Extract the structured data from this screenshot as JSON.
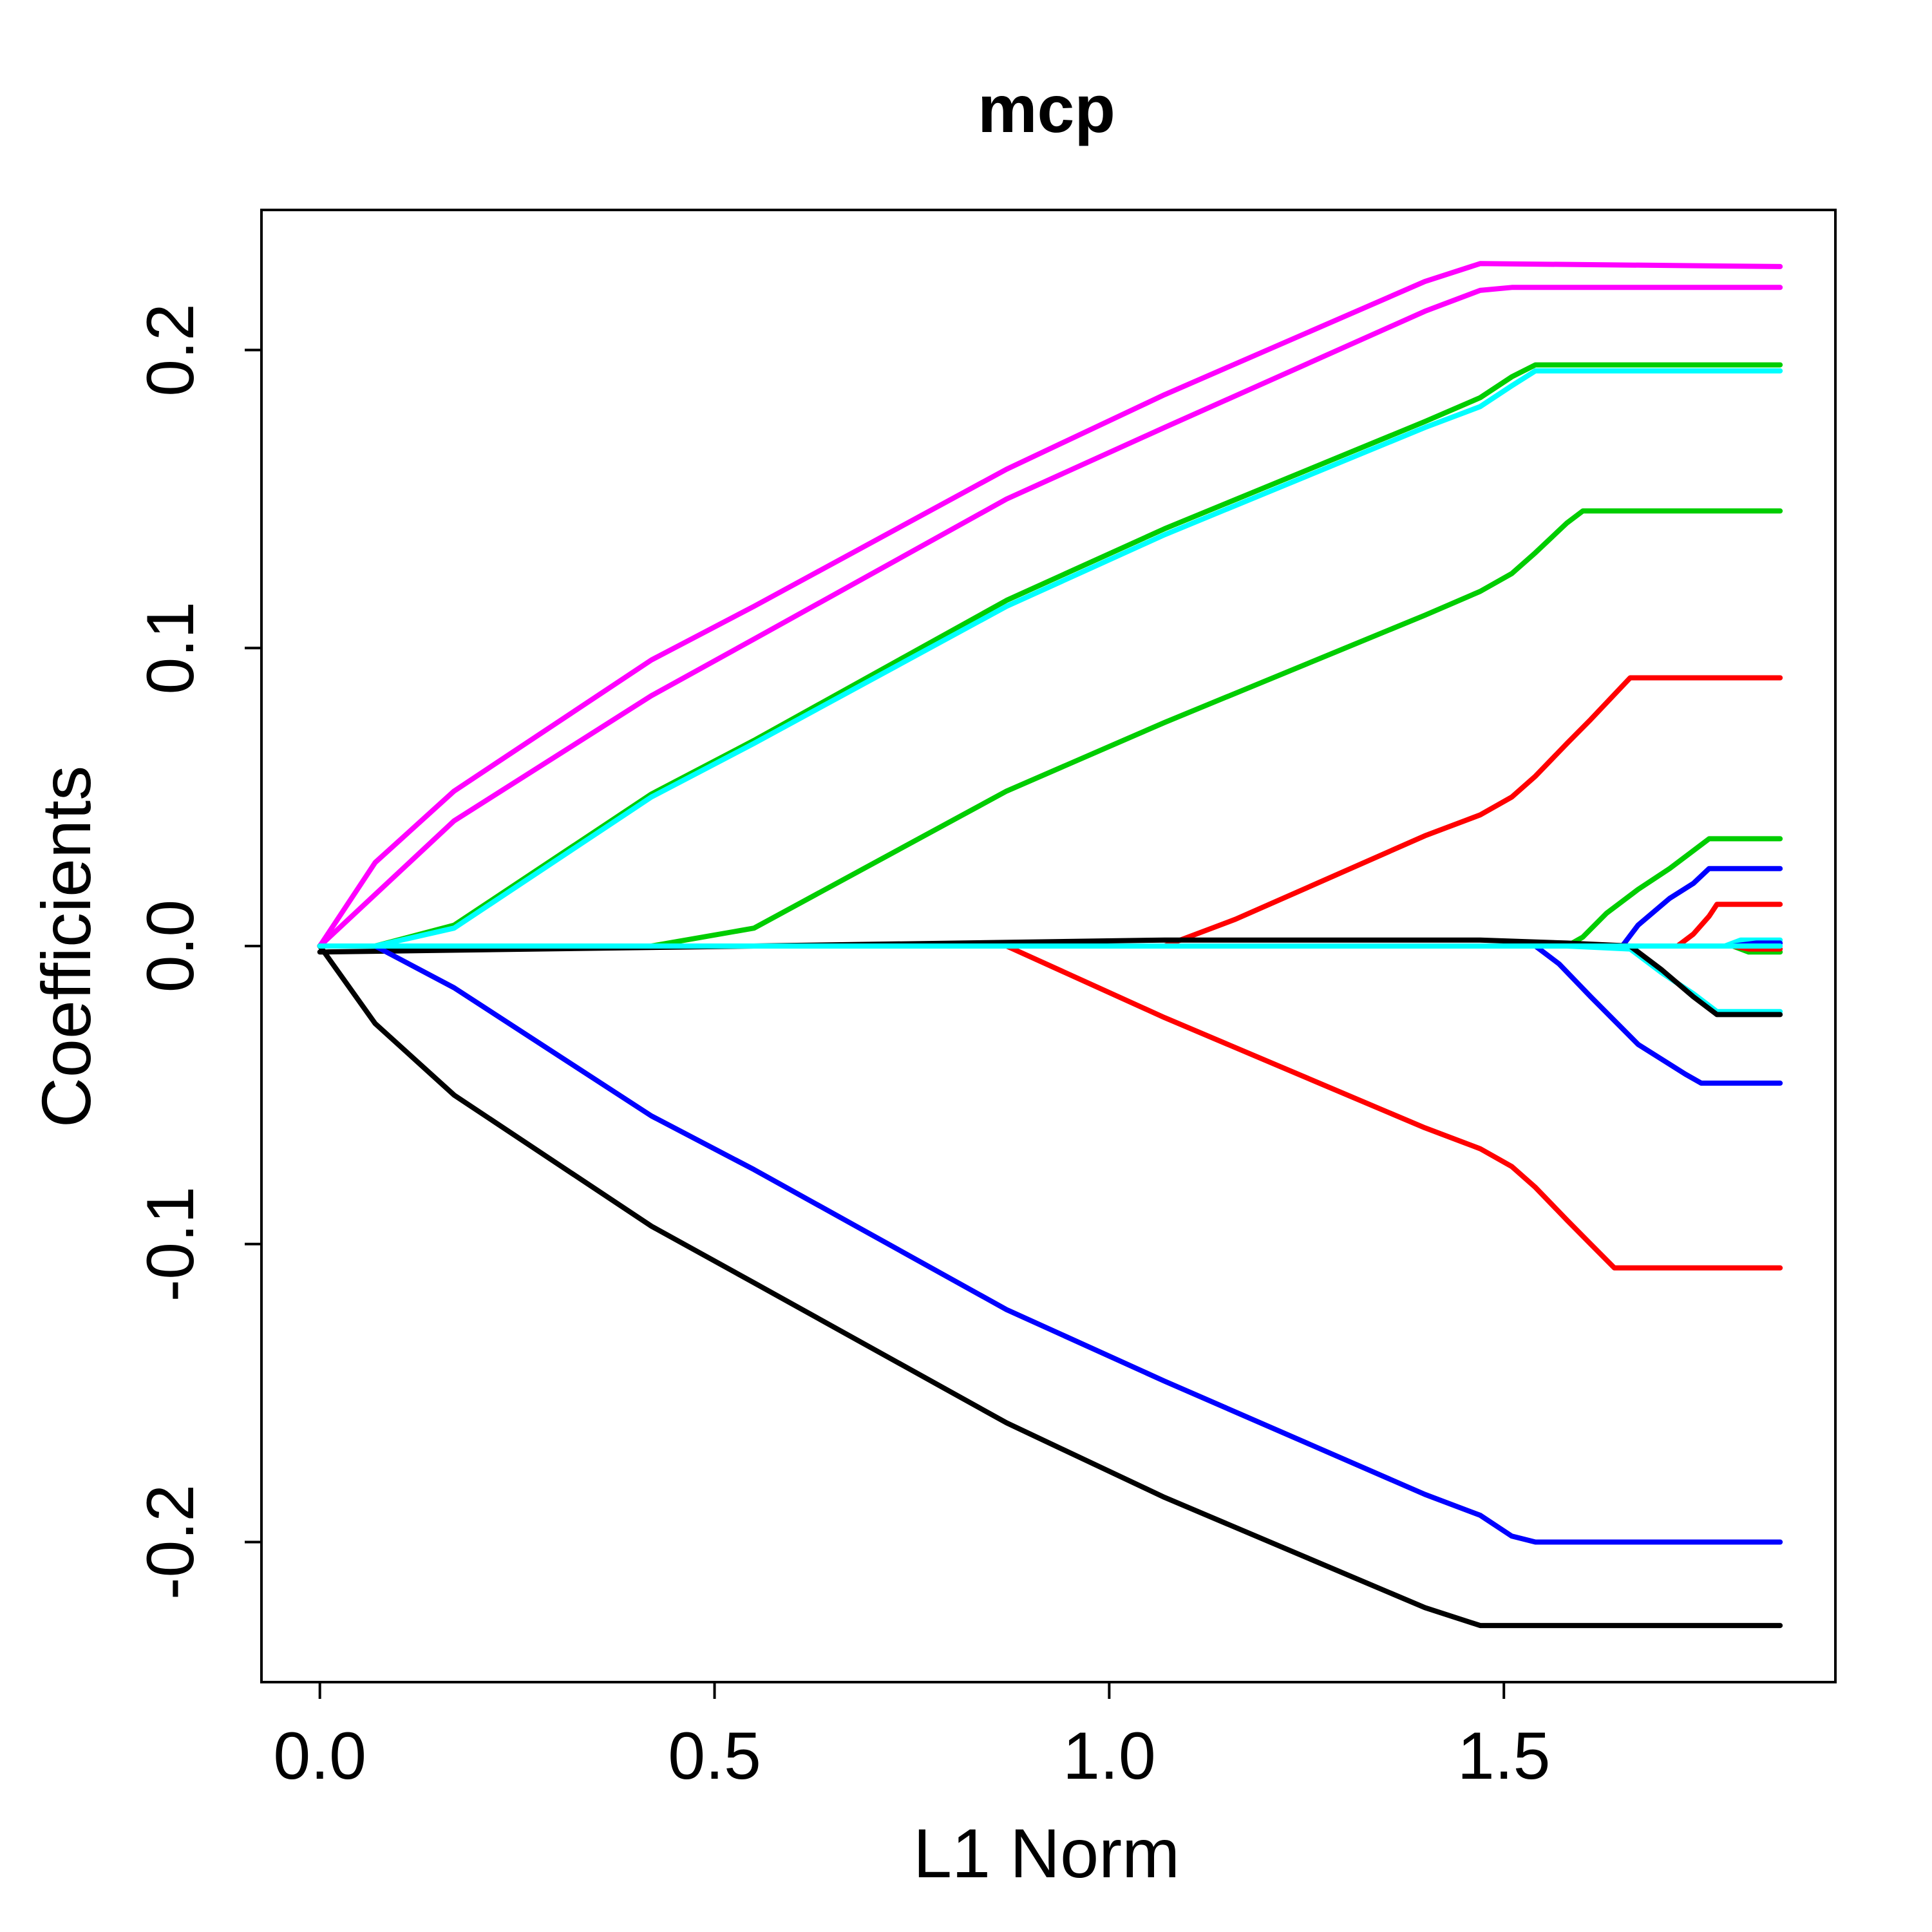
{
  "chart_data": {
    "type": "line",
    "title": "mcp",
    "xlabel": "L1 Norm",
    "ylabel": "Coefficients",
    "xlim": [
      -0.074,
      1.92
    ],
    "ylim": [
      -0.247,
      0.247
    ],
    "xticks": [
      {
        "value": 0.0,
        "label": "0.0"
      },
      {
        "value": 0.5,
        "label": "0.5"
      },
      {
        "value": 1.0,
        "label": "1.0"
      },
      {
        "value": 1.5,
        "label": "1.5"
      }
    ],
    "yticks": [
      {
        "value": -0.2,
        "label": "-0.2"
      },
      {
        "value": -0.1,
        "label": "-0.1"
      },
      {
        "value": 0.0,
        "label": "0.0"
      },
      {
        "value": 0.1,
        "label": "0.1"
      },
      {
        "value": 0.2,
        "label": "0.2"
      }
    ],
    "grid": false,
    "legend": false,
    "series": [
      {
        "color": "#FF00FF",
        "points": [
          [
            0.0,
            0.0
          ],
          [
            0.07,
            0.028
          ],
          [
            0.17,
            0.052
          ],
          [
            0.42,
            0.096
          ],
          [
            0.55,
            0.114
          ],
          [
            0.87,
            0.16
          ],
          [
            1.07,
            0.185
          ],
          [
            1.4,
            0.223
          ],
          [
            1.47,
            0.229
          ],
          [
            1.85,
            0.228
          ]
        ]
      },
      {
        "color": "#FF00FF",
        "points": [
          [
            0.0,
            0.0
          ],
          [
            0.17,
            0.042
          ],
          [
            0.42,
            0.084
          ],
          [
            0.55,
            0.103
          ],
          [
            0.87,
            0.15
          ],
          [
            1.07,
            0.174
          ],
          [
            1.4,
            0.213
          ],
          [
            1.47,
            0.22
          ],
          [
            1.51,
            0.221
          ],
          [
            1.85,
            0.221
          ]
        ]
      },
      {
        "color": "#00CD00",
        "points": [
          [
            0.0,
            0.0
          ],
          [
            0.07,
            0.0
          ],
          [
            0.17,
            0.007
          ],
          [
            0.42,
            0.051
          ],
          [
            0.55,
            0.069
          ],
          [
            0.87,
            0.116
          ],
          [
            1.07,
            0.14
          ],
          [
            1.4,
            0.176
          ],
          [
            1.47,
            0.184
          ],
          [
            1.51,
            0.191
          ],
          [
            1.54,
            0.195
          ],
          [
            1.85,
            0.195
          ]
        ]
      },
      {
        "color": "#00FFFF",
        "points": [
          [
            0.0,
            0.0
          ],
          [
            0.07,
            0.0
          ],
          [
            0.17,
            0.006
          ],
          [
            0.42,
            0.05
          ],
          [
            0.55,
            0.068
          ],
          [
            0.87,
            0.114
          ],
          [
            1.07,
            0.138
          ],
          [
            1.4,
            0.174
          ],
          [
            1.47,
            0.181
          ],
          [
            1.51,
            0.188
          ],
          [
            1.54,
            0.193
          ],
          [
            1.85,
            0.193
          ]
        ]
      },
      {
        "color": "#00CD00",
        "points": [
          [
            0.0,
            0.0
          ],
          [
            0.42,
            0.0
          ],
          [
            0.55,
            0.006
          ],
          [
            0.87,
            0.052
          ],
          [
            1.07,
            0.075
          ],
          [
            1.4,
            0.111
          ],
          [
            1.47,
            0.119
          ],
          [
            1.51,
            0.125
          ],
          [
            1.54,
            0.132
          ],
          [
            1.58,
            0.142
          ],
          [
            1.6,
            0.146
          ],
          [
            1.85,
            0.146
          ]
        ]
      },
      {
        "color": "#FF0000",
        "points": [
          [
            0.0,
            0.0
          ],
          [
            1.07,
            0.0
          ],
          [
            1.16,
            0.009
          ],
          [
            1.4,
            0.037
          ],
          [
            1.47,
            0.044
          ],
          [
            1.51,
            0.05
          ],
          [
            1.54,
            0.057
          ],
          [
            1.58,
            0.068
          ],
          [
            1.61,
            0.076
          ],
          [
            1.66,
            0.09
          ],
          [
            1.85,
            0.09
          ]
        ]
      },
      {
        "color": "#00CD00",
        "points": [
          [
            0.0,
            0.0
          ],
          [
            1.58,
            0.0
          ],
          [
            1.6,
            0.003
          ],
          [
            1.63,
            0.011
          ],
          [
            1.67,
            0.019
          ],
          [
            1.71,
            0.026
          ],
          [
            1.74,
            0.032
          ],
          [
            1.76,
            0.036
          ],
          [
            1.85,
            0.036
          ]
        ]
      },
      {
        "color": "#0000FF",
        "points": [
          [
            0.0,
            0.0
          ],
          [
            1.65,
            0.0
          ],
          [
            1.67,
            0.007
          ],
          [
            1.71,
            0.016
          ],
          [
            1.74,
            0.021
          ],
          [
            1.76,
            0.026
          ],
          [
            1.85,
            0.026
          ]
        ]
      },
      {
        "color": "#FF0000",
        "points": [
          [
            0.0,
            0.0
          ],
          [
            1.72,
            0.0
          ],
          [
            1.74,
            0.004
          ],
          [
            1.76,
            0.01
          ],
          [
            1.77,
            0.014
          ],
          [
            1.85,
            0.014
          ]
        ]
      },
      {
        "color": "#00FFFF",
        "points": [
          [
            0.0,
            0.0
          ],
          [
            1.78,
            0.0
          ],
          [
            1.8,
            0.002
          ],
          [
            1.85,
            0.002
          ]
        ]
      },
      {
        "color": "#0000FF",
        "points": [
          [
            0.0,
            0.0
          ],
          [
            1.79,
            0.0
          ],
          [
            1.82,
            0.001
          ],
          [
            1.85,
            0.001
          ]
        ]
      },
      {
        "color": "#00CD00",
        "points": [
          [
            0.0,
            0.0
          ],
          [
            1.79,
            0.0
          ],
          [
            1.81,
            -0.002
          ],
          [
            1.85,
            -0.002
          ]
        ]
      },
      {
        "color": "#FF0000",
        "points": [
          [
            0.0,
            0.0
          ],
          [
            1.79,
            0.0
          ],
          [
            1.81,
            -0.001
          ],
          [
            1.85,
            -0.001
          ]
        ]
      },
      {
        "color": "#00FFFF",
        "points": [
          [
            0.0,
            0.0
          ],
          [
            1.58,
            0.0
          ],
          [
            1.66,
            -0.001
          ],
          [
            1.7,
            -0.009
          ],
          [
            1.74,
            -0.016
          ],
          [
            1.77,
            -0.022
          ],
          [
            1.85,
            -0.022
          ]
        ]
      },
      {
        "color": "#000000",
        "points": [
          [
            0.0,
            -0.002
          ],
          [
            0.55,
            0.0
          ],
          [
            1.07,
            0.002
          ],
          [
            1.47,
            0.002
          ],
          [
            1.58,
            0.001
          ],
          [
            1.66,
            0.0
          ],
          [
            1.7,
            -0.008
          ],
          [
            1.74,
            -0.017
          ],
          [
            1.77,
            -0.023
          ],
          [
            1.85,
            -0.023
          ]
        ]
      },
      {
        "color": "#0000FF",
        "points": [
          [
            0.0,
            0.0
          ],
          [
            1.54,
            0.0
          ],
          [
            1.57,
            -0.006
          ],
          [
            1.61,
            -0.017
          ],
          [
            1.67,
            -0.033
          ],
          [
            1.73,
            -0.043
          ],
          [
            1.75,
            -0.046
          ],
          [
            1.85,
            -0.046
          ]
        ]
      },
      {
        "color": "#FF0000",
        "points": [
          [
            0.0,
            0.0
          ],
          [
            0.87,
            0.0
          ],
          [
            1.07,
            -0.024
          ],
          [
            1.4,
            -0.061
          ],
          [
            1.47,
            -0.068
          ],
          [
            1.51,
            -0.074
          ],
          [
            1.54,
            -0.081
          ],
          [
            1.58,
            -0.092
          ],
          [
            1.61,
            -0.1
          ],
          [
            1.64,
            -0.108
          ],
          [
            1.85,
            -0.108
          ]
        ]
      },
      {
        "color": "#0000FF",
        "points": [
          [
            0.0,
            0.0
          ],
          [
            0.07,
            0.0
          ],
          [
            0.17,
            -0.014
          ],
          [
            0.42,
            -0.057
          ],
          [
            0.55,
            -0.075
          ],
          [
            0.87,
            -0.122
          ],
          [
            1.07,
            -0.146
          ],
          [
            1.4,
            -0.184
          ],
          [
            1.47,
            -0.191
          ],
          [
            1.51,
            -0.198
          ],
          [
            1.54,
            -0.2
          ],
          [
            1.85,
            -0.2
          ]
        ]
      },
      {
        "color": "#000000",
        "points": [
          [
            0.0,
            0.0
          ],
          [
            0.07,
            -0.026
          ],
          [
            0.17,
            -0.05
          ],
          [
            0.42,
            -0.094
          ],
          [
            0.55,
            -0.113
          ],
          [
            0.87,
            -0.16
          ],
          [
            1.07,
            -0.185
          ],
          [
            1.4,
            -0.222
          ],
          [
            1.47,
            -0.228
          ],
          [
            1.85,
            -0.228
          ]
        ]
      },
      {
        "color": "#00FFFF",
        "points": [
          [
            0.0,
            0.0
          ],
          [
            1.85,
            0.0
          ]
        ]
      }
    ]
  }
}
